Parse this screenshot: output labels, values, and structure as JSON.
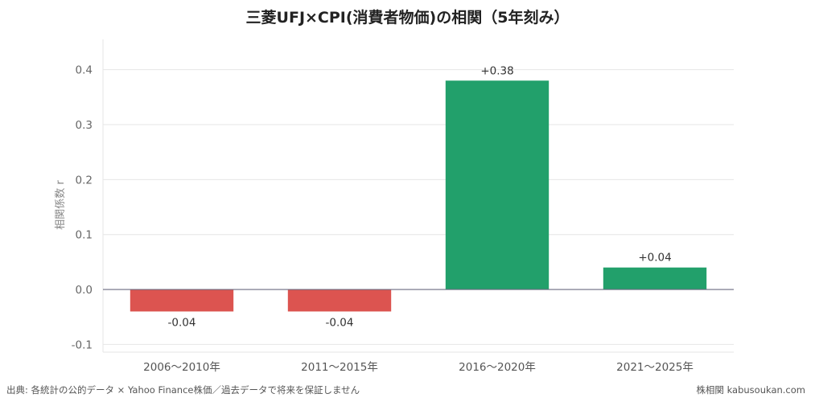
{
  "chart_data": {
    "type": "bar",
    "title": "三菱UFJ×CPI(消費者物価)の相関（5年刻み）",
    "xlabel": "",
    "ylabel": "相関係数 r",
    "categories": [
      "2006〜2010年",
      "2011〜2015年",
      "2016〜2020年",
      "2021〜2025年"
    ],
    "values": [
      -0.04,
      -0.04,
      0.38,
      0.04
    ],
    "data_labels": [
      "-0.04",
      "-0.04",
      "+0.38",
      "+0.04"
    ],
    "yticks": [
      -0.1,
      0.0,
      0.1,
      0.2,
      0.3,
      0.4
    ],
    "ytick_labels": [
      "-0.1",
      "0.0",
      "0.1",
      "0.2",
      "0.3",
      "0.4"
    ],
    "ylim": [
      -0.114,
      0.455
    ],
    "grid": true,
    "colors": {
      "positive": "#22a06b",
      "negative": "#dc5450",
      "zero_line": "#6b6b80",
      "grid": "#e6e6e6"
    }
  },
  "footer": {
    "source": "出典: 各統計の公的データ × Yahoo Finance株価／過去データで将来を保証しません",
    "credit": "株相関 kabusoukan.com"
  }
}
